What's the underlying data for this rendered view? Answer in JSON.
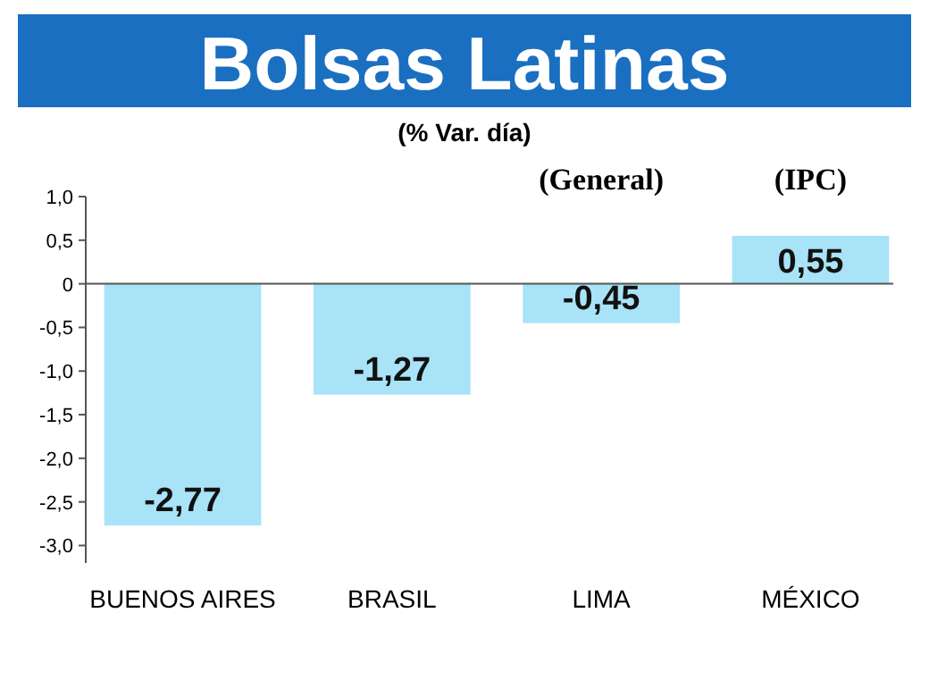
{
  "chart_data": {
    "type": "bar",
    "title": "Bolsas Latinas",
    "subtitle": "(% Var. día)",
    "categories": [
      "BUENOS AIRES",
      "BRASIL",
      "LIMA",
      "MÉXICO"
    ],
    "values": [
      -2.77,
      -1.27,
      -0.45,
      0.55
    ],
    "color": "#a8e3f7",
    "value_labels": [
      "-2,77",
      "-1,27",
      "-0,45",
      "0,55"
    ],
    "annotations": [
      "(General)",
      "(IPC)"
    ],
    "ylim": [
      -3.2,
      1.0
    ],
    "yticks": [
      {
        "value": 1,
        "label": "1,0"
      },
      {
        "value": 0.5,
        "label": "0,5"
      },
      {
        "value": 0,
        "label": "0"
      },
      {
        "value": -0.5,
        "label": "-0,5"
      },
      {
        "value": -1,
        "label": "-1,0"
      },
      {
        "value": -1.5,
        "label": "-1,5"
      },
      {
        "value": -2,
        "label": "-2,0"
      },
      {
        "value": -2.5,
        "label": "-2,5"
      },
      {
        "value": -3,
        "label": "-3,0"
      }
    ]
  }
}
